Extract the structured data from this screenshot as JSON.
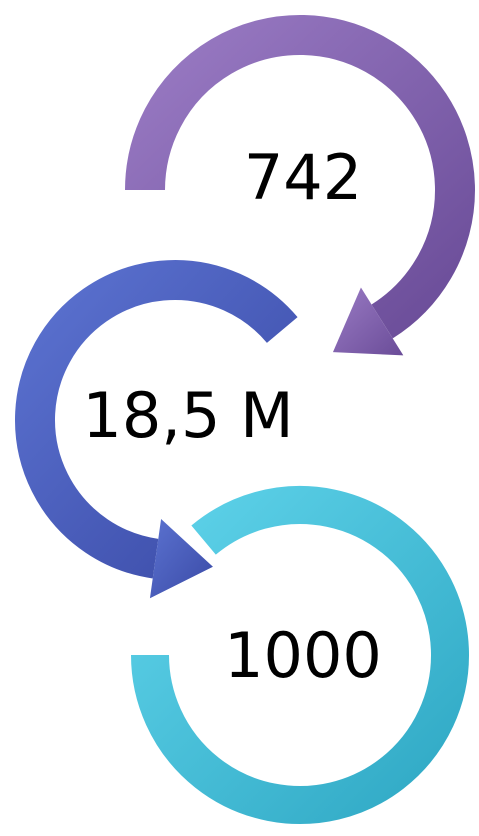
{
  "nodes": [
    {
      "label": "742"
    },
    {
      "label": "18,5 M"
    },
    {
      "label": "1000"
    }
  ]
}
